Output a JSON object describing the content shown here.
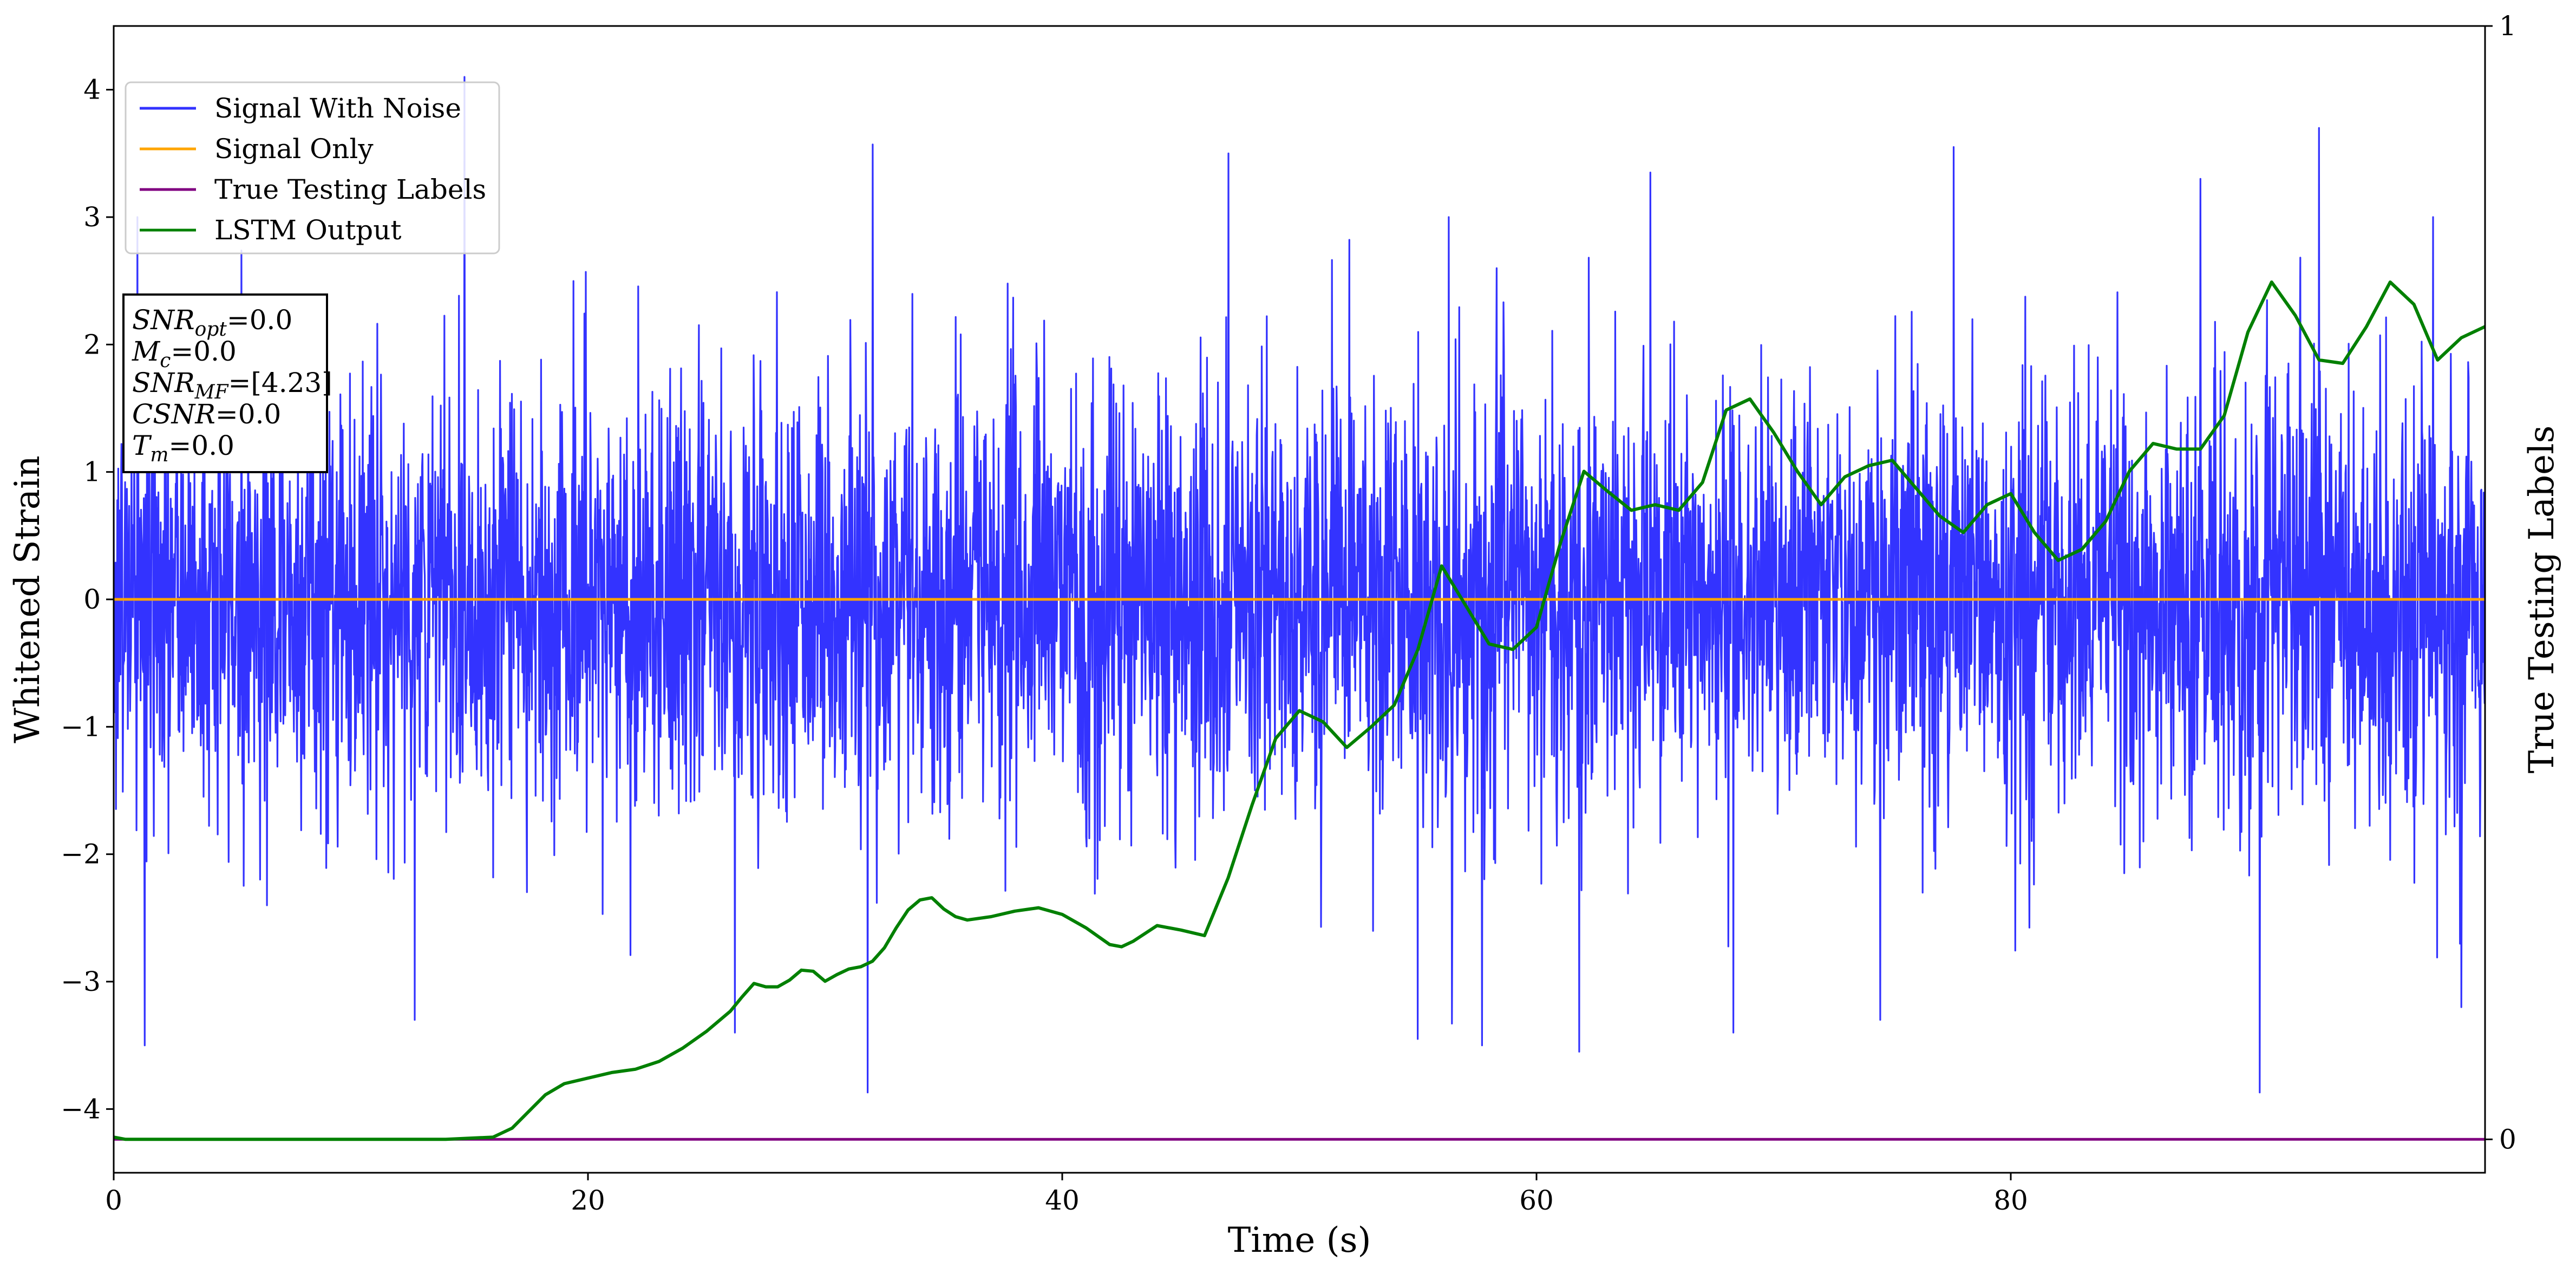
{
  "chart_data": {
    "type": "line",
    "xlabel": "Time (s)",
    "ylabel": "Whitened Strain",
    "y2label": "True Testing Labels",
    "xlim": [
      0,
      100
    ],
    "ylim": [
      -4.5,
      4.5
    ],
    "y2lim": [
      -0.03,
      1.0
    ],
    "xticks": [
      "0",
      "20",
      "40",
      "60",
      "80"
    ],
    "xtick_values": [
      0,
      20,
      40,
      60,
      80
    ],
    "yticks": [
      "4",
      "3",
      "2",
      "1",
      "0",
      "−1",
      "−2",
      "−3",
      "−4"
    ],
    "ytick_values": [
      4,
      3,
      2,
      1,
      0,
      -1,
      -2,
      -3,
      -4
    ],
    "y2ticks": [
      "1",
      "0"
    ],
    "y2tick_values": [
      1,
      0
    ],
    "legend_position": "top-left",
    "series": [
      {
        "name": "Signal With Noise",
        "color": "#3333ff",
        "kind": "noise",
        "approx_std": 0.85,
        "approx_range": [
          -3.9,
          4.1
        ],
        "peaks": [
          [
            1.0,
            3.0
          ],
          [
            14.8,
            4.1
          ],
          [
            32.0,
            3.57
          ],
          [
            47.0,
            3.5
          ],
          [
            56.3,
            3.0
          ],
          [
            64.8,
            3.35
          ],
          [
            77.6,
            3.55
          ],
          [
            88.0,
            3.3
          ],
          [
            93.0,
            3.7
          ],
          [
            97.8,
            3.0
          ]
        ],
        "troughs": [
          [
            1.3,
            -3.5
          ],
          [
            12.7,
            -3.3
          ],
          [
            26.2,
            -3.4
          ],
          [
            31.8,
            -3.87
          ],
          [
            55.0,
            -3.45
          ],
          [
            61.8,
            -3.55
          ],
          [
            68.3,
            -3.4
          ],
          [
            74.5,
            -3.3
          ],
          [
            90.5,
            -3.87
          ],
          [
            99.0,
            -3.2
          ]
        ]
      },
      {
        "name": "Signal Only",
        "color": "#ffa500",
        "x": [
          0,
          100
        ],
        "y": [
          0,
          0
        ]
      },
      {
        "name": "True Testing Labels",
        "color": "#800080",
        "axis": "right",
        "x": [
          0,
          100
        ],
        "y": [
          0,
          0
        ]
      },
      {
        "name": "LSTM Output",
        "color": "#008000",
        "axis": "right",
        "x": [
          0,
          0.5,
          5,
          10,
          14,
          16,
          16.8,
          17.5,
          18.2,
          19,
          20,
          21,
          22,
          23,
          24,
          25,
          26,
          26.5,
          27,
          27.5,
          28,
          28.5,
          29,
          29.5,
          30,
          30.5,
          31,
          31.5,
          32,
          32.5,
          33,
          33.5,
          34,
          34.5,
          35,
          35.5,
          36,
          37,
          38,
          39,
          40,
          41,
          42,
          42.5,
          43,
          44,
          45,
          46,
          47,
          48,
          49,
          50,
          51,
          52,
          53,
          54,
          55,
          56,
          57,
          58,
          59,
          60,
          61,
          62,
          63,
          64,
          65,
          66,
          67,
          68,
          69,
          70,
          71,
          72,
          73,
          74,
          75,
          76,
          77,
          78,
          79,
          80,
          81,
          82,
          83,
          84,
          85,
          86,
          87,
          88,
          89,
          90,
          91,
          92,
          93,
          94,
          95,
          96,
          97,
          98,
          99,
          100
        ],
        "y": [
          0.002,
          0.0,
          0.0,
          0.0,
          0.0,
          0.002,
          0.01,
          0.025,
          0.04,
          0.05,
          0.055,
          0.06,
          0.063,
          0.07,
          0.082,
          0.097,
          0.115,
          0.128,
          0.14,
          0.137,
          0.137,
          0.143,
          0.152,
          0.151,
          0.142,
          0.148,
          0.153,
          0.155,
          0.16,
          0.172,
          0.19,
          0.206,
          0.215,
          0.217,
          0.207,
          0.2,
          0.197,
          0.2,
          0.205,
          0.208,
          0.202,
          0.19,
          0.175,
          0.173,
          0.178,
          0.192,
          0.188,
          0.183,
          0.235,
          0.3,
          0.36,
          0.385,
          0.375,
          0.352,
          0.37,
          0.39,
          0.44,
          0.515,
          0.48,
          0.445,
          0.44,
          0.46,
          0.535,
          0.6,
          0.582,
          0.565,
          0.57,
          0.565,
          0.59,
          0.655,
          0.665,
          0.635,
          0.6,
          0.57,
          0.595,
          0.605,
          0.61,
          0.585,
          0.56,
          0.545,
          0.57,
          0.58,
          0.545,
          0.52,
          0.53,
          0.555,
          0.6,
          0.625,
          0.62,
          0.62,
          0.65,
          0.725,
          0.77,
          0.74,
          0.7,
          0.697,
          0.73,
          0.77,
          0.75,
          0.7,
          0.72,
          0.73
        ]
      }
    ],
    "annotation_box": {
      "lines": [
        {
          "var": "SNR",
          "sub": "opt",
          "value": "=0.0"
        },
        {
          "var": "M",
          "sub": "c",
          "value": "=0.0"
        },
        {
          "var": "SNR",
          "sub": "MF",
          "value": "=[4.23]"
        },
        {
          "var": "CSNR",
          "sub": "",
          "value": "=0.0"
        },
        {
          "var": "T",
          "sub": "m",
          "value": "=0.0"
        }
      ]
    }
  }
}
